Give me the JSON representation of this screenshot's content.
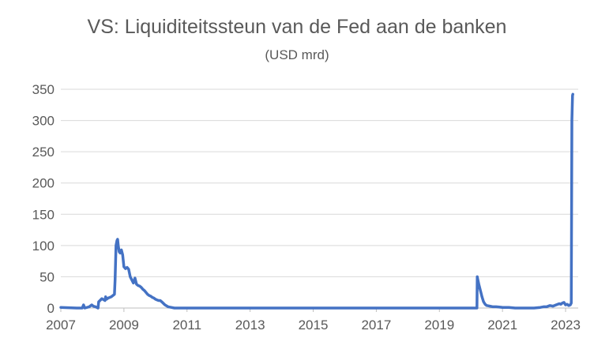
{
  "chart_data": {
    "type": "line",
    "title": "VS: Liquiditeitssteun van de Fed aan de banken",
    "subtitle": "(USD mrd)",
    "xlabel": "",
    "ylabel": "",
    "xlim": [
      2007.0,
      2023.4
    ],
    "ylim": [
      0,
      350
    ],
    "x_ticks": [
      "2007",
      "2009",
      "2011",
      "2013",
      "2015",
      "2017",
      "2019",
      "2021",
      "2023"
    ],
    "y_ticks": [
      "0",
      "50",
      "100",
      "150",
      "200",
      "250",
      "300",
      "350"
    ],
    "grid": "horizontal",
    "legend": "none",
    "line_color": "#4472C4",
    "series": [
      {
        "x": [
          2007.0,
          2007.5,
          2007.68,
          2007.72,
          2007.76,
          2007.9,
          2007.98,
          2008.03,
          2008.1,
          2008.18,
          2008.2,
          2008.3,
          2008.4,
          2008.42,
          2008.45,
          2008.5,
          2008.6,
          2008.7,
          2008.72,
          2008.75,
          2008.78,
          2008.8,
          2008.82,
          2008.85,
          2008.88,
          2008.92,
          2008.96,
          2009.0,
          2009.05,
          2009.1,
          2009.15,
          2009.2,
          2009.25,
          2009.3,
          2009.35,
          2009.4,
          2009.45,
          2009.5,
          2009.55,
          2009.6,
          2009.65,
          2009.7,
          2009.75,
          2009.8,
          2009.85,
          2009.9,
          2009.95,
          2010.0,
          2010.05,
          2010.1,
          2010.15,
          2010.2,
          2010.3,
          2010.4,
          2010.5,
          2010.6,
          2010.8,
          2011.0,
          2015.0,
          2020.19,
          2020.2,
          2020.22,
          2020.25,
          2020.3,
          2020.35,
          2020.4,
          2020.45,
          2020.5,
          2020.6,
          2020.7,
          2020.8,
          2021.0,
          2021.2,
          2021.4,
          2021.6,
          2021.8,
          2022.0,
          2022.2,
          2022.3,
          2022.4,
          2022.5,
          2022.6,
          2022.7,
          2022.8,
          2022.85,
          2022.9,
          2022.95,
          2023.0,
          2023.05,
          2023.1,
          2023.15,
          2023.18,
          2023.19,
          2023.2,
          2023.21,
          2023.22,
          2023.23
        ],
        "y": [
          1,
          0,
          0,
          5,
          0,
          2,
          5,
          3,
          2,
          0,
          10,
          15,
          12,
          18,
          14,
          16,
          18,
          22,
          45,
          100,
          108,
          110,
          100,
          90,
          88,
          93,
          85,
          66,
          63,
          65,
          62,
          50,
          45,
          40,
          48,
          38,
          36,
          35,
          33,
          30,
          28,
          25,
          22,
          20,
          19,
          17,
          16,
          14,
          13,
          12,
          12,
          10,
          5,
          2,
          1,
          0,
          0,
          0,
          0,
          0,
          50,
          45,
          38,
          28,
          18,
          10,
          6,
          4,
          3,
          2,
          2,
          1,
          1,
          0,
          0,
          0,
          0,
          1,
          2,
          2,
          4,
          3,
          5,
          7,
          6,
          8,
          9,
          5,
          6,
          4,
          5,
          8,
          150,
          300,
          320,
          340,
          342
        ]
      }
    ]
  }
}
